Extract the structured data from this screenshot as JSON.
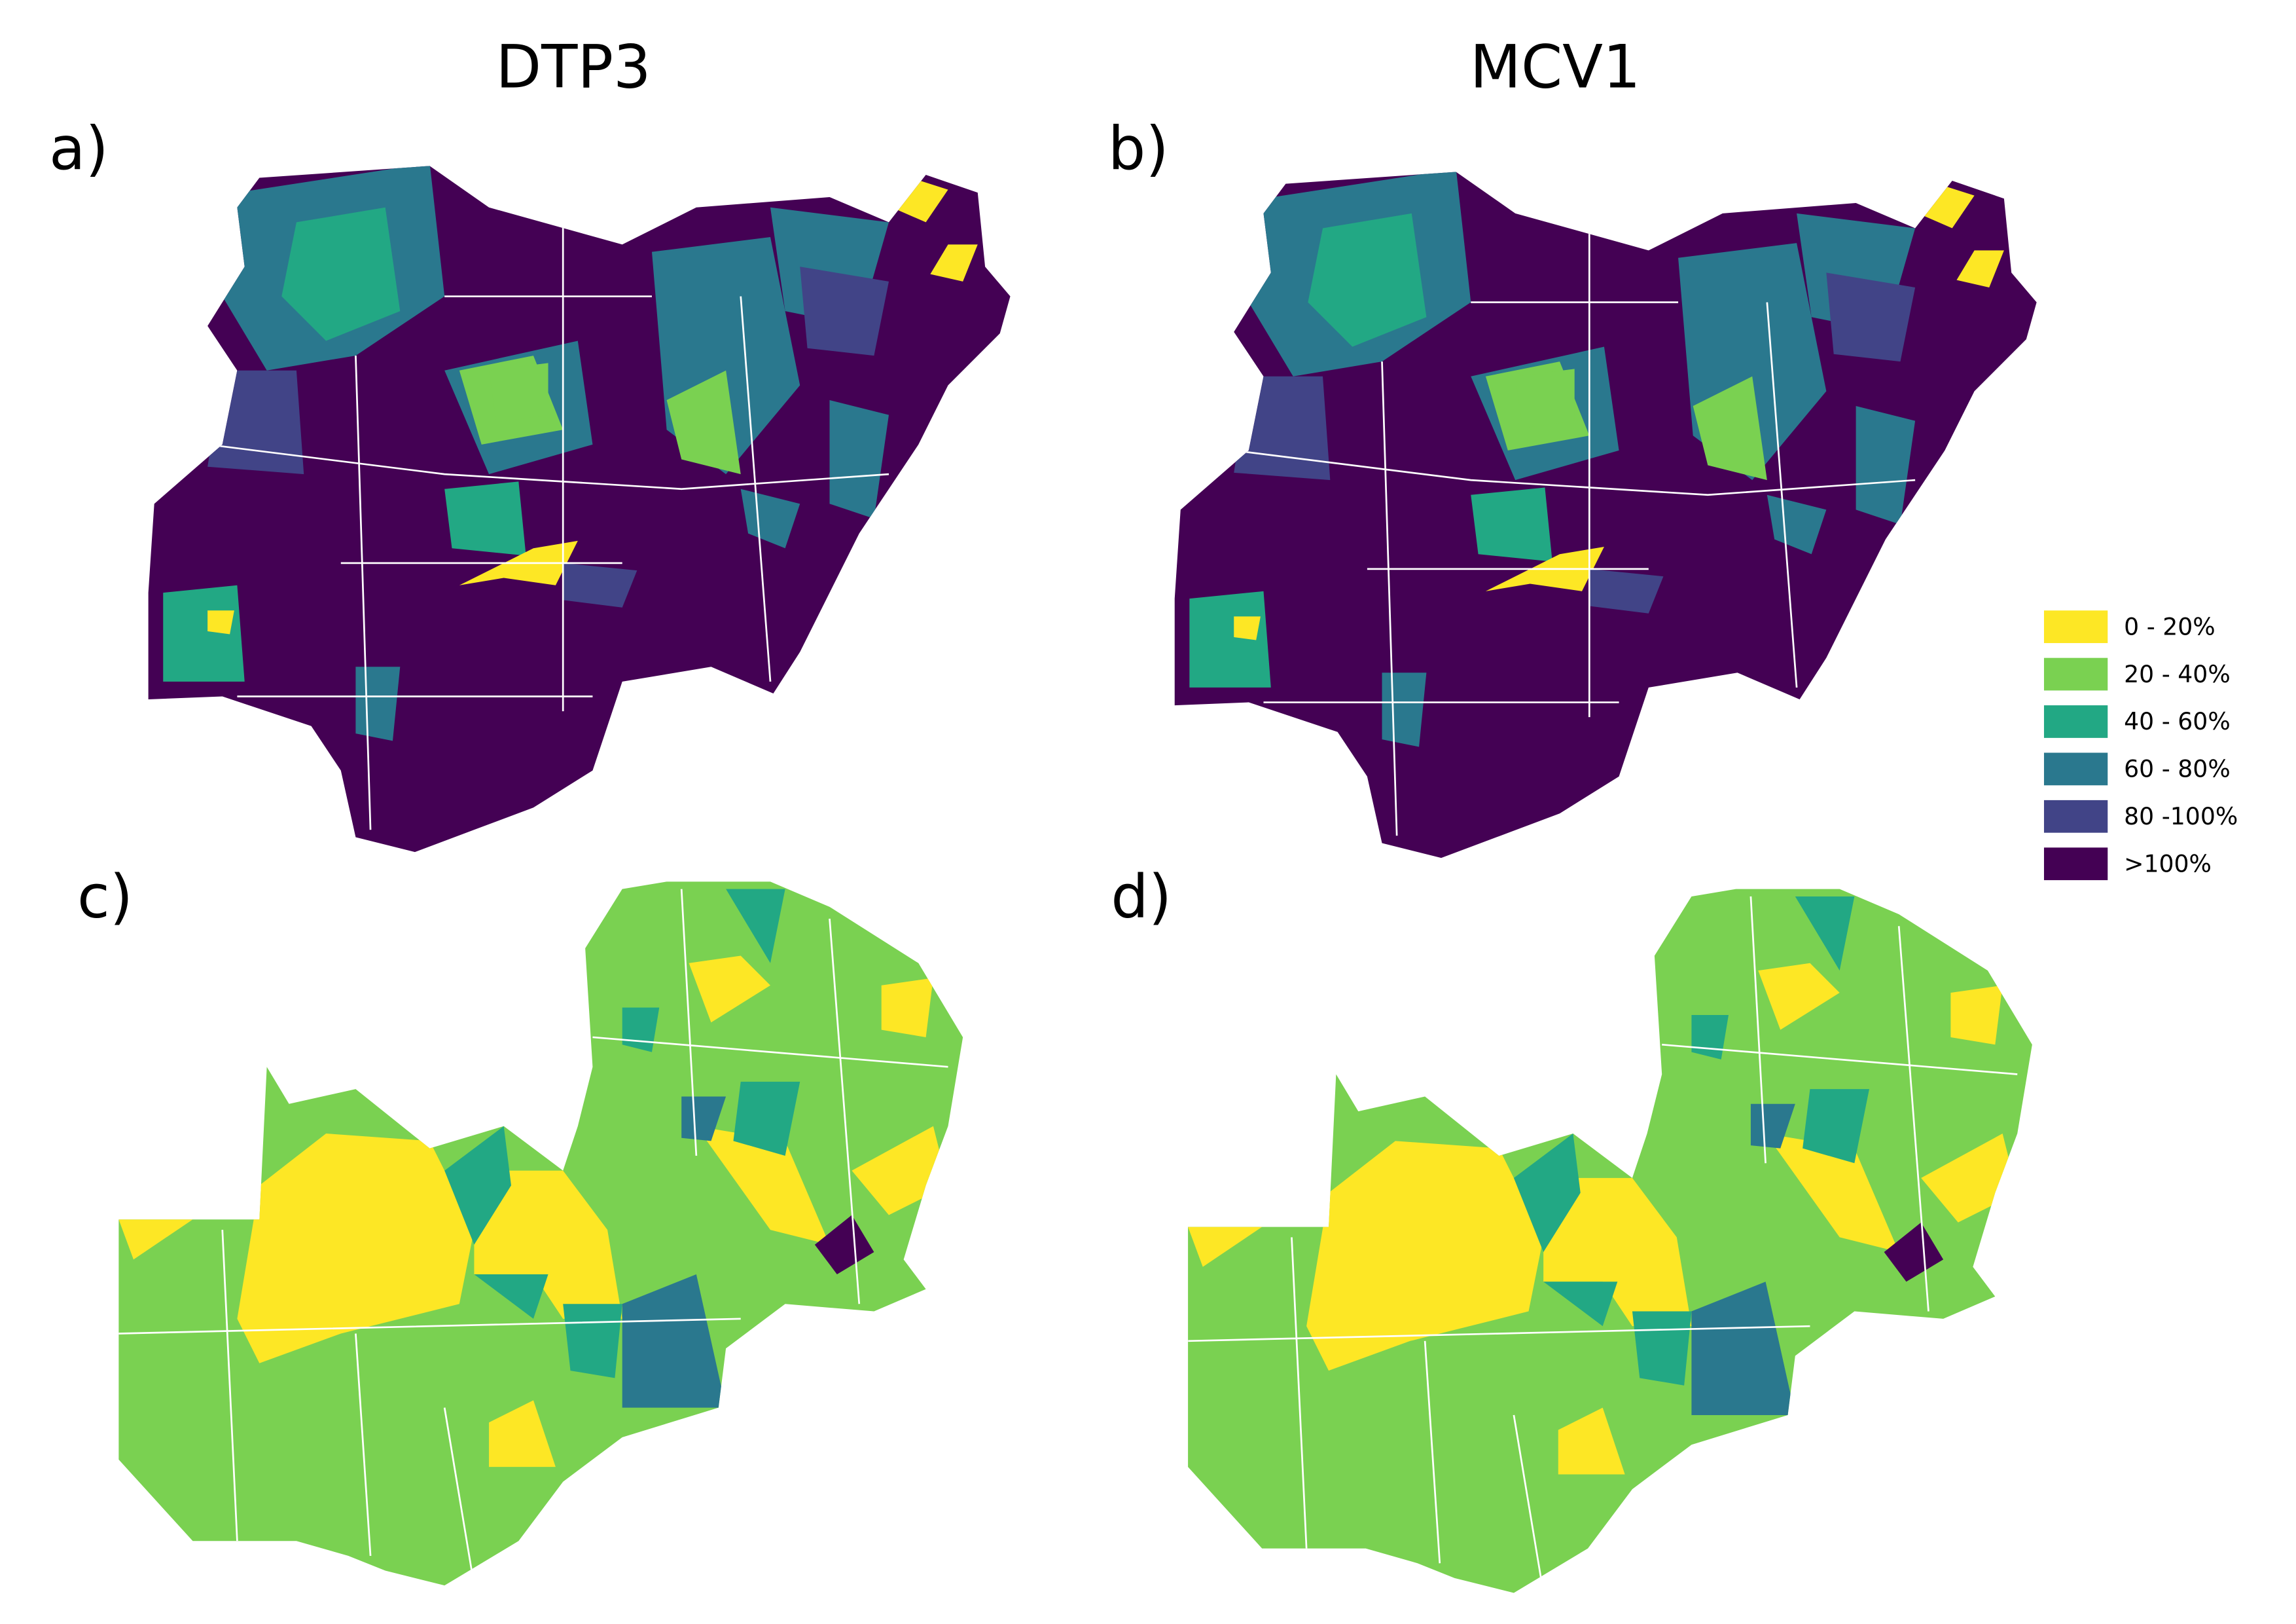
{
  "panel_titles": [
    "DTP3",
    "MCV1"
  ],
  "panel_labels": [
    "a)",
    "b)",
    "c)",
    "d)"
  ],
  "legend": {
    "items": [
      {
        "label": "0 - 20%",
        "color": "#fde725"
      },
      {
        "label": "20 - 40%",
        "color": "#7ad151"
      },
      {
        "label": "40 - 60%",
        "color": "#22a884"
      },
      {
        "label": "60 - 80%",
        "color": "#2a788e"
      },
      {
        "label": "80 -100%",
        "color": "#414487"
      },
      {
        "label": ">100%",
        "color": "#440154"
      }
    ]
  }
}
